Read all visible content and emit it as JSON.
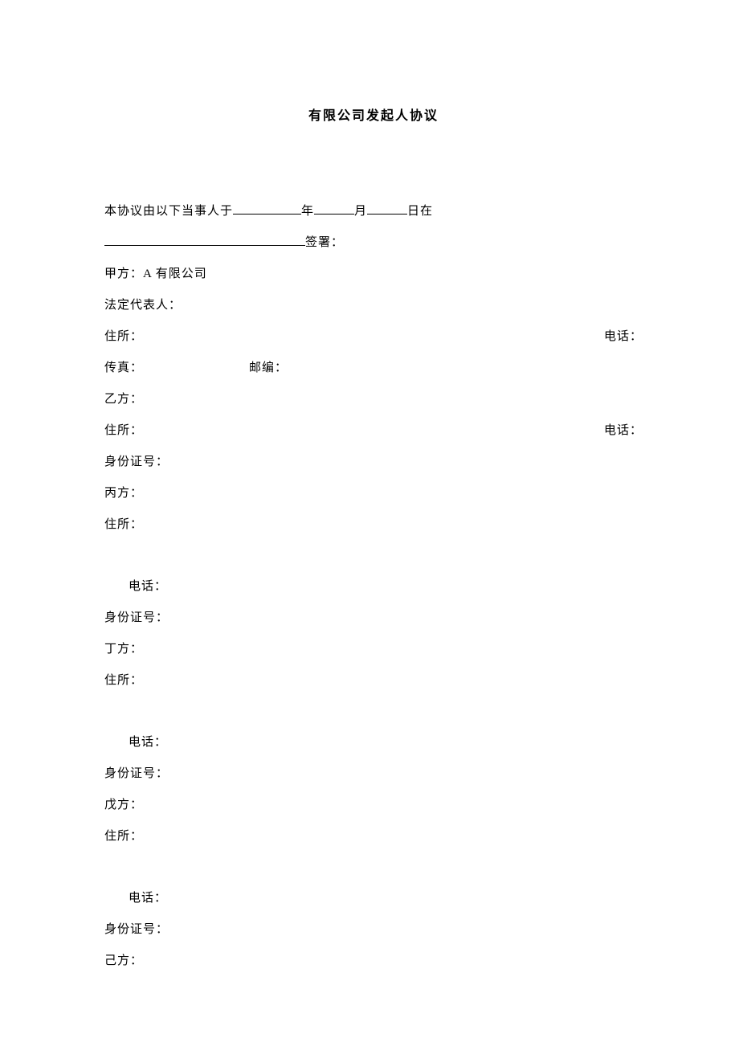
{
  "title": "有限公司发起人协议",
  "intro": {
    "prefix": "本协议由以下当事人于",
    "year_suffix": "年",
    "month_suffix": "月",
    "day_suffix": "日在",
    "sign_suffix": "签署："
  },
  "labels": {
    "party_a": "甲方：",
    "party_a_name": "A 有限公司",
    "legal_rep": "法定代表人：",
    "address": "住所：",
    "phone": "电话：",
    "fax": "传真：",
    "postcode": "邮编：",
    "party_b": "乙方：",
    "id_number": "身份证号：",
    "party_c": "丙方：",
    "party_d": "丁方：",
    "party_e": "戊方：",
    "party_f": "己方："
  }
}
